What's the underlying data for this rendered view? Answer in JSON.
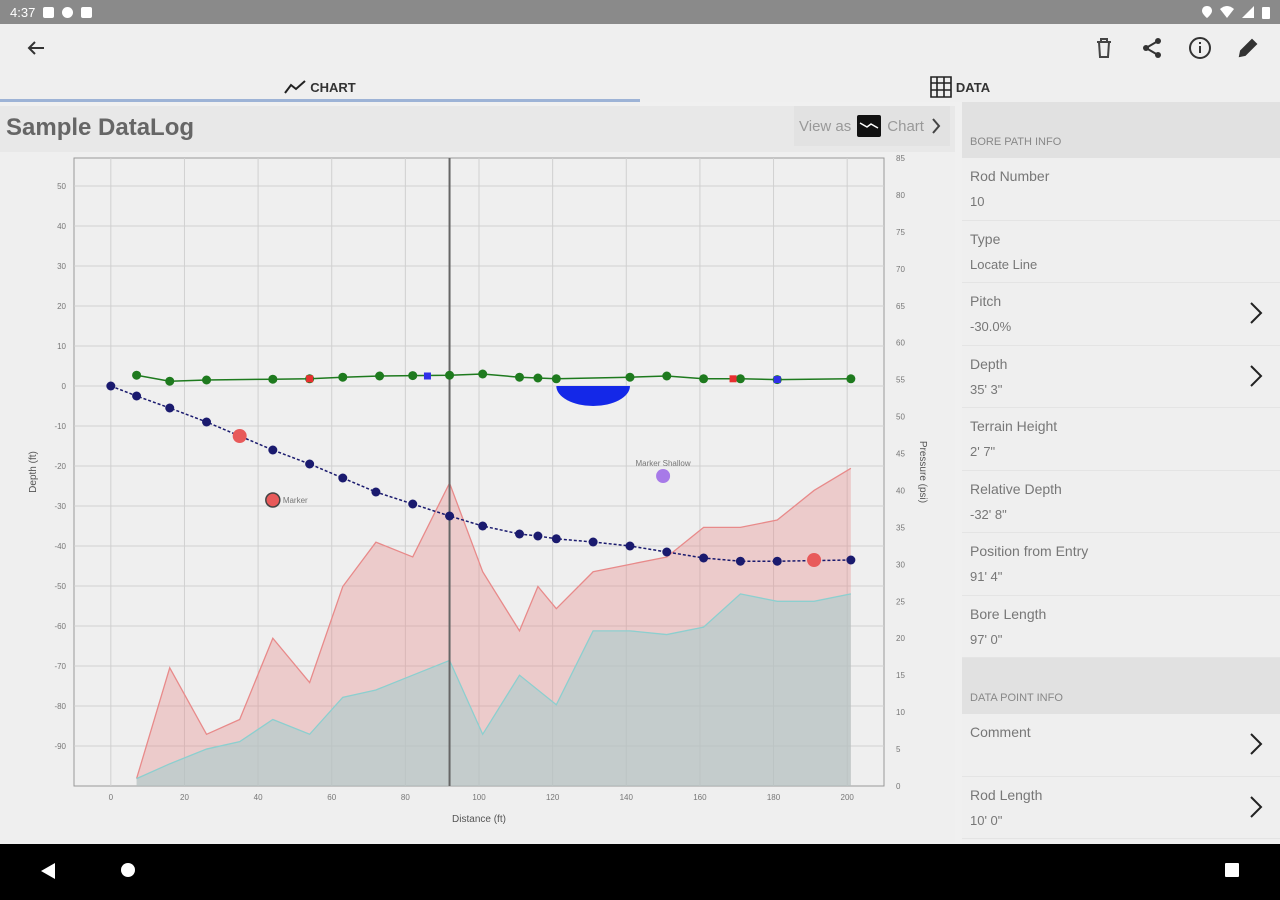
{
  "status": {
    "time": "4:37"
  },
  "tabs": [
    {
      "label": "CHART",
      "icon": "chart-line-icon"
    },
    {
      "label": "DATA",
      "icon": "table-grid-icon"
    }
  ],
  "header": {
    "title": "Sample DataLog",
    "view_as_label": "View as",
    "view_as_value": "Chart"
  },
  "side": {
    "bore_path_header": "BORE PATH INFO",
    "bore_path": [
      {
        "label": "Rod Number",
        "value": "10"
      },
      {
        "label": "Type",
        "value": "Locate Line"
      },
      {
        "label": "Pitch",
        "value": "-30.0%"
      },
      {
        "label": "Depth",
        "value": "35' 3\""
      },
      {
        "label": "Terrain Height",
        "value": "2' 7\""
      },
      {
        "label": "Relative Depth",
        "value": "-32' 8\""
      },
      {
        "label": "Position from Entry",
        "value": "91' 4\""
      },
      {
        "label": "Bore Length",
        "value": "97' 0\""
      }
    ],
    "data_point_header": "DATA POINT INFO",
    "data_point": [
      {
        "label": "Comment",
        "value": ""
      },
      {
        "label": "Rod Length",
        "value": "10' 0\""
      }
    ]
  },
  "chart_data": {
    "type": "line",
    "xlabel": "Distance (ft)",
    "ylabel": "Depth (ft)",
    "y2label": "Pressure (psi)",
    "xlim": [
      -10,
      210
    ],
    "ylim": [
      -100,
      57
    ],
    "y2lim": [
      0,
      85
    ],
    "x_ticks": [
      0,
      20,
      40,
      60,
      80,
      100,
      120,
      140,
      160,
      180,
      200
    ],
    "y_ticks": [
      50,
      40,
      30,
      20,
      10,
      0,
      -10,
      -20,
      -30,
      -40,
      -50,
      -60,
      -70,
      -80,
      -90
    ],
    "y2_ticks": [
      85,
      80,
      75,
      70,
      65,
      60,
      55,
      50,
      45,
      40,
      35,
      30,
      25,
      20,
      15,
      10,
      5,
      0
    ],
    "cursor_x": 92,
    "bore_path": {
      "color": "#1a1a6e",
      "x": [
        0,
        7,
        16,
        26,
        44,
        54,
        63,
        72,
        82,
        92,
        101,
        111,
        116,
        121,
        131,
        141,
        151,
        161,
        171,
        181,
        201
      ],
      "y": [
        0,
        -2.5,
        -5.5,
        -9,
        -16,
        -19.5,
        -23,
        -26.5,
        -29.5,
        -32.5,
        -35,
        -37,
        -37.5,
        -38.2,
        -39,
        -40,
        -41.5,
        -43,
        -43.8,
        -43.8,
        -43.5
      ]
    },
    "terrain": {
      "color": "#1e7a1e",
      "x": [
        7,
        16,
        26,
        44,
        54,
        63,
        73,
        82,
        92,
        101,
        111,
        116,
        121,
        141,
        151,
        161,
        171,
        181,
        201
      ],
      "y": [
        2.7,
        1.2,
        1.5,
        1.7,
        1.8,
        2.2,
        2.5,
        2.6,
        2.7,
        3,
        2.2,
        2,
        1.8,
        2.2,
        2.5,
        1.8,
        1.8,
        1.6,
        1.8
      ]
    },
    "pressure_high": {
      "color": "#e88a8a",
      "x": [
        7,
        16,
        26,
        35,
        44,
        54,
        63,
        72,
        82,
        92,
        101,
        111,
        116,
        121,
        131,
        141,
        151,
        161,
        171,
        181,
        191,
        201
      ],
      "y": [
        1,
        16,
        7,
        9,
        20,
        14,
        27,
        33,
        31,
        41,
        29,
        21,
        27,
        24,
        29,
        30,
        31,
        35,
        35,
        36,
        40,
        43
      ]
    },
    "pressure_low": {
      "color": "#8ccfcf",
      "x": [
        7,
        16,
        26,
        35,
        44,
        54,
        63,
        72,
        82,
        92,
        101,
        111,
        121,
        131,
        141,
        151,
        161,
        171,
        181,
        191,
        201
      ],
      "y": [
        1,
        3,
        5,
        6,
        9,
        7,
        12,
        13,
        15,
        17,
        7,
        15,
        11,
        21,
        21,
        20.5,
        21.5,
        26,
        25,
        25,
        26
      ]
    },
    "markers": [
      {
        "x": 35,
        "y": -12.5,
        "color": "#e85a5a",
        "label": ""
      },
      {
        "x": 44,
        "y": -28.5,
        "color": "#e85a5a",
        "label": "Marker"
      },
      {
        "x": 150,
        "y": -22.5,
        "color": "#a77ae8",
        "label": "Marker Shallow"
      },
      {
        "x": 191,
        "y": -43.5,
        "color": "#e85a5a",
        "label": ""
      }
    ],
    "small_markers": [
      {
        "x": 54,
        "y": 1.8,
        "color": "#e83030"
      },
      {
        "x": 86,
        "y": 2.5,
        "color": "#3030e8"
      },
      {
        "x": 169,
        "y": 1.8,
        "color": "#e83030"
      },
      {
        "x": 181,
        "y": 1.6,
        "color": "#3030e8"
      }
    ],
    "obstacle": {
      "x_start": 121,
      "x_end": 141,
      "depth": -5,
      "color": "#1428e8"
    }
  }
}
